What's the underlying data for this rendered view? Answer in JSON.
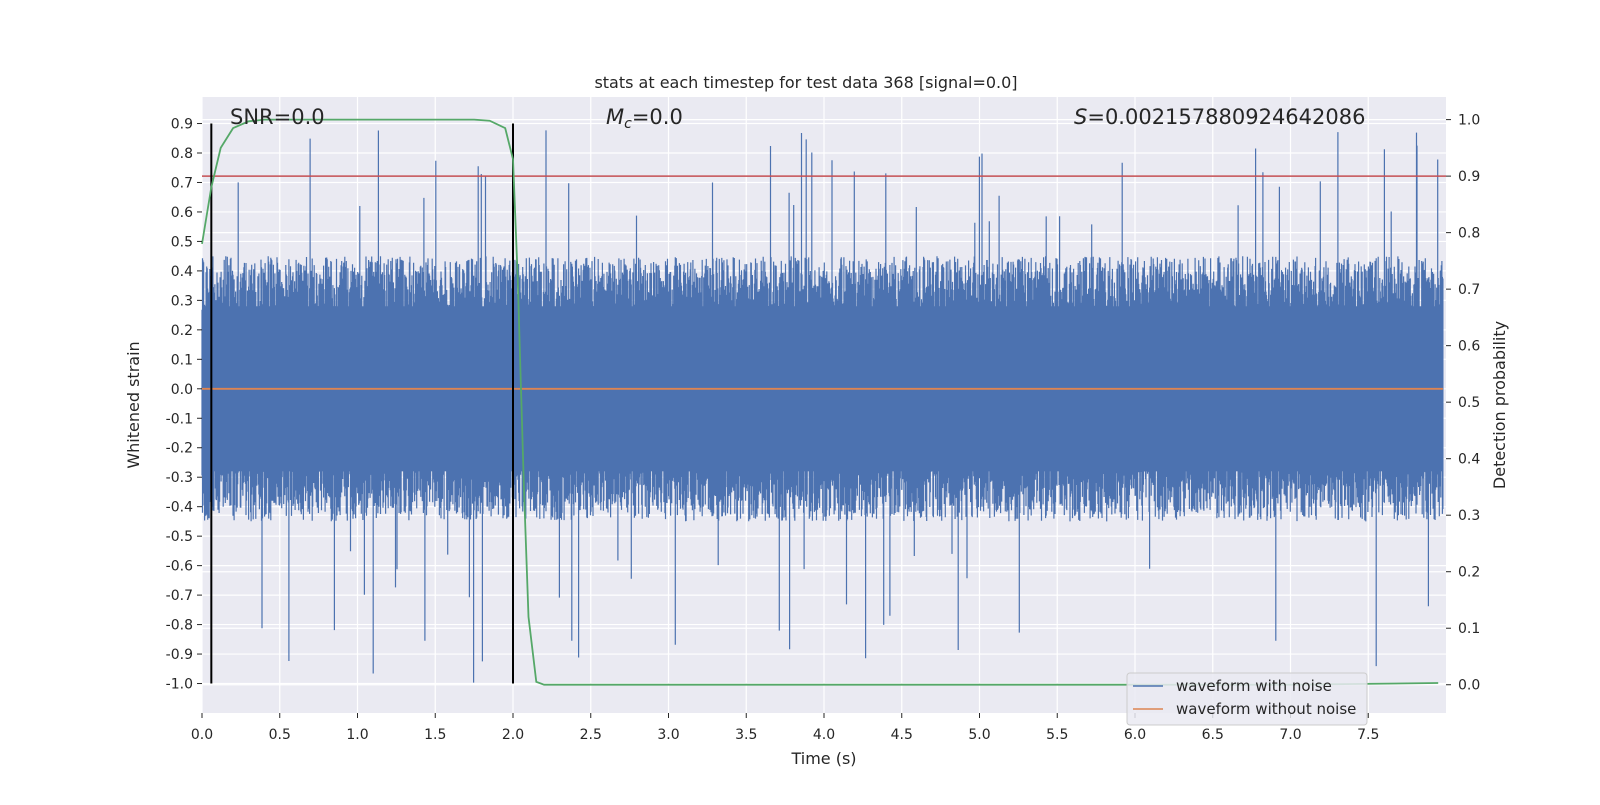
{
  "chart_data": {
    "type": "line",
    "title": "stats at each timestep for test data 368 [signal=0.0]",
    "xlabel": "Time (s)",
    "ylabel": "Whitened strain",
    "ylabel_right": "Detection probability",
    "xlim": [
      0.0,
      8.0
    ],
    "ylim": [
      -1.1,
      0.99
    ],
    "ylim_right": [
      -0.05,
      1.04
    ],
    "x_ticks": [
      "0.0",
      "0.5",
      "1.0",
      "1.5",
      "2.0",
      "2.5",
      "3.0",
      "3.5",
      "4.0",
      "4.5",
      "5.0",
      "5.5",
      "6.0",
      "6.5",
      "7.0",
      "7.5"
    ],
    "y_ticks": [
      "0.9",
      "0.8",
      "0.7",
      "0.6",
      "0.5",
      "0.4",
      "0.3",
      "0.2",
      "0.1",
      "0.0",
      "-0.1",
      "-0.2",
      "-0.3",
      "-0.4",
      "-0.5",
      "-0.6",
      "-0.7",
      "-0.8",
      "-0.9",
      "-1.0"
    ],
    "y_right_ticks": [
      "1.0",
      "0.9",
      "0.8",
      "0.7",
      "0.6",
      "0.5",
      "0.4",
      "0.3",
      "0.2",
      "0.1",
      "0.0"
    ],
    "annotations": {
      "snr_label": "SNR=0.0",
      "mc_symbol": "M",
      "mc_subscript": "c",
      "mc_value": "=0.0",
      "s_symbol": "S",
      "s_value": "=0.002157880924642086"
    },
    "threshold_right": 0.9,
    "vertical_markers_x": [
      0.06,
      2.0
    ],
    "series": [
      {
        "name": "waveform with noise",
        "color": "#4c72b0",
        "typical_envelope": [
          -0.45,
          0.45
        ],
        "peak_max": 0.88,
        "peak_min": -1.0
      },
      {
        "name": "waveform without noise",
        "color": "#dd8452",
        "value": 0.0
      },
      {
        "name": "detection probability",
        "color": "#55a868",
        "axis": "right",
        "x": [
          0.0,
          0.06,
          0.12,
          0.2,
          0.3,
          0.4,
          0.5,
          1.0,
          1.5,
          1.75,
          1.85,
          1.95,
          2.0,
          2.03,
          2.07,
          2.1,
          2.15,
          2.2,
          2.3,
          3.0,
          5.0,
          7.0,
          7.95
        ],
        "y": [
          0.78,
          0.88,
          0.95,
          0.985,
          0.997,
          1.0,
          1.0,
          1.0,
          1.0,
          1.0,
          0.998,
          0.985,
          0.93,
          0.72,
          0.35,
          0.12,
          0.005,
          0.0,
          0.0,
          0.0,
          0.0,
          0.0,
          0.003
        ]
      }
    ],
    "legend": {
      "location": "lower right",
      "entries": [
        "waveform with noise",
        "waveform without noise"
      ]
    },
    "grid": true,
    "colors": {
      "background": "#eaeaf2",
      "grid": "#ffffff",
      "threshold": "#c44e52",
      "marker": "#000000"
    }
  }
}
